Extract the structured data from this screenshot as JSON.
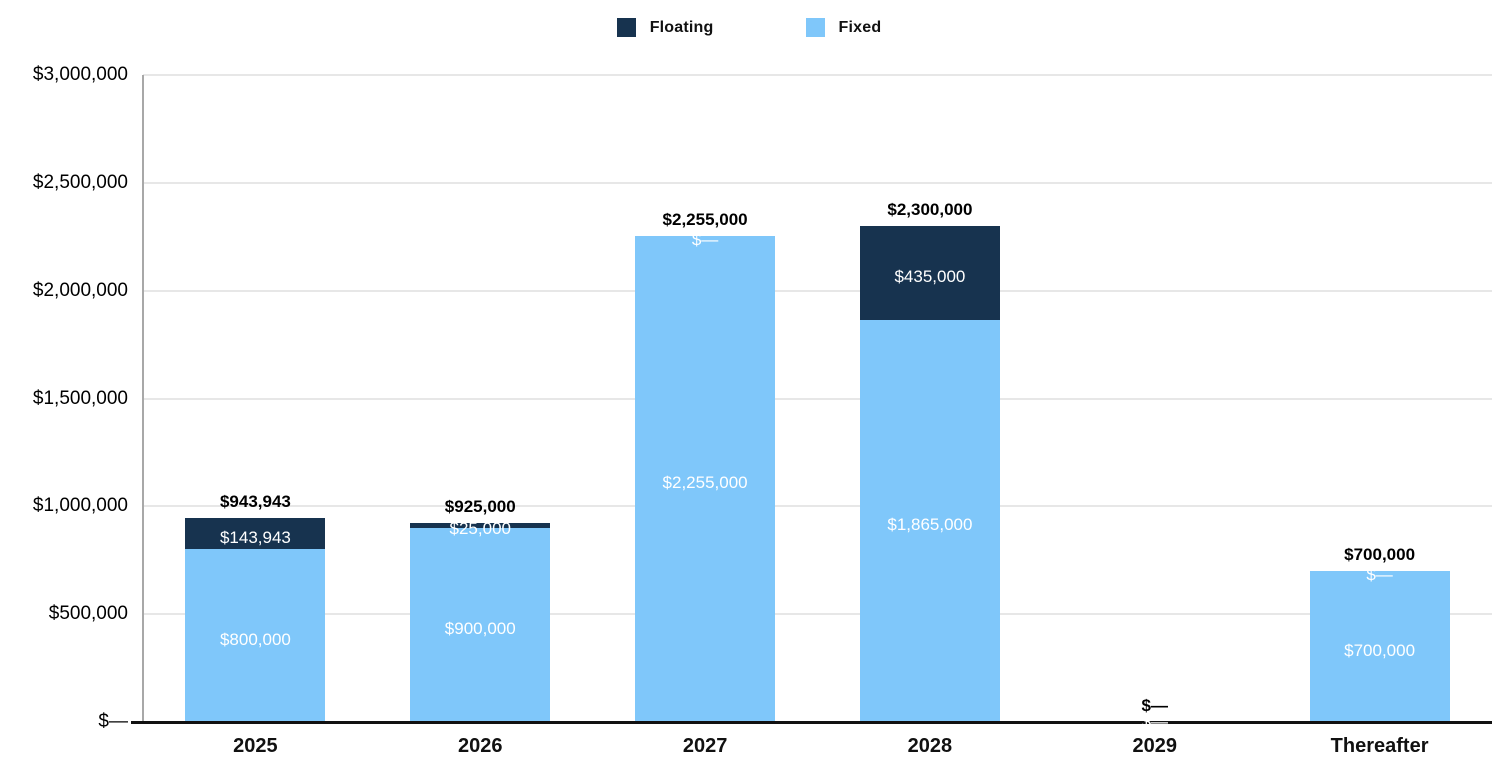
{
  "legend": {
    "items": [
      {
        "label": "Floating",
        "color": "#17334F"
      },
      {
        "label": "Fixed",
        "color": "#7FC7FA"
      }
    ]
  },
  "chart_data": {
    "type": "bar",
    "stacked": true,
    "title": "",
    "xlabel": "",
    "ylabel": "",
    "categories": [
      "2025",
      "2026",
      "2027",
      "2028",
      "2029",
      "Thereafter"
    ],
    "series": [
      {
        "name": "Fixed",
        "color": "#7FC7FA",
        "values": [
          800000,
          900000,
          2255000,
          1865000,
          0,
          700000
        ],
        "labels": [
          "$800,000",
          "$900,000",
          "$2,255,000",
          "$1,865,000",
          "$—",
          "$700,000"
        ],
        "label_color": "#ffffff"
      },
      {
        "name": "Floating",
        "color": "#17334F",
        "values": [
          143943,
          25000,
          0,
          435000,
          0,
          0
        ],
        "labels": [
          "$143,943",
          "$25,000",
          "$—",
          "$435,000",
          "$—",
          "$—"
        ],
        "label_color": "#ffffff"
      }
    ],
    "totals": [
      943943,
      925000,
      2255000,
      2300000,
      0,
      700000
    ],
    "total_labels": [
      "$943,943",
      "$925,000",
      "$2,255,000",
      "$2,300,000",
      "$—",
      "$700,000"
    ],
    "y_axis": {
      "min": 0,
      "max": 3000000,
      "tick_interval": 500000,
      "tick_labels": [
        "$3,000,000",
        "$2,500,000",
        "$2,000,000",
        "$1,500,000",
        "$1,000,000",
        "$500,000",
        "$—"
      ]
    },
    "grid": true,
    "legend_position": "top-center",
    "colors": {
      "floating": "#17334F",
      "fixed": "#7FC7FA",
      "gridline": "#e7e7e7",
      "y_axis_line": "#a8a8a8",
      "x_axis_line": "#111111"
    }
  }
}
